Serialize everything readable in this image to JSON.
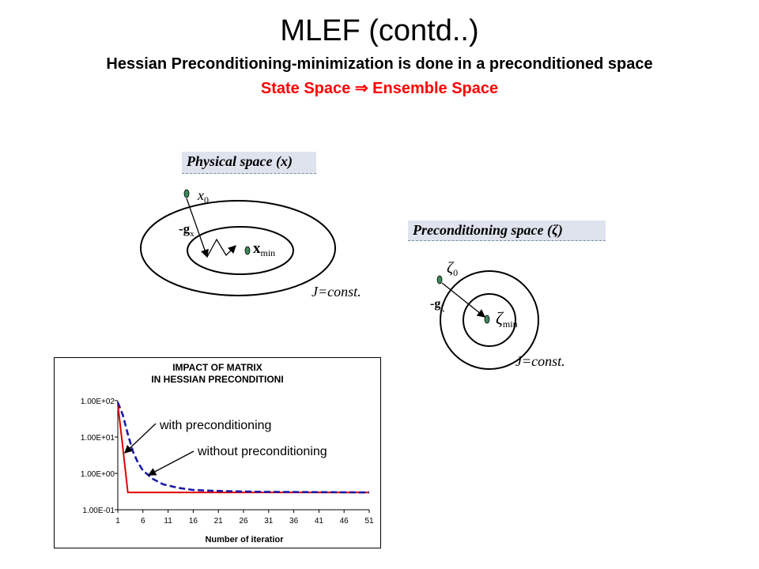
{
  "title": "MLEF (contd..)",
  "subtitle": "Hessian Preconditioning-minimization is done in a preconditioned space",
  "subtitle2": {
    "left": "State Space",
    "arrow": "⇒",
    "right": "Ensemble Space"
  },
  "physical": {
    "label": "Physical space (x)",
    "start_label": "x",
    "start_sub": "0",
    "grad_label": "-g",
    "grad_sub": "x",
    "min_label": "x",
    "min_sub": "min",
    "contour_label": "J=const."
  },
  "precond": {
    "label": "Preconditioning space (ζ)",
    "start_label": "ζ",
    "start_sub": "0",
    "grad_label": "-g",
    "grad_sub": "ζ",
    "min_label": "ζ",
    "min_sub": "min",
    "contour_label": "J=const."
  },
  "colors": {
    "red_text": "#ff0000",
    "label_bg": "#dfe3ee",
    "blue_series": "#1a1aa6",
    "red_series": "#e00000"
  },
  "annotations": {
    "with": "with preconditioning",
    "without": "without preconditioning"
  },
  "chart_data": {
    "type": "line",
    "title": "IMPACT OF MATRIX IN HESSIAN PRECONDITIONI",
    "title_line1": "IMPACT OF MATRIX",
    "title_line2": "IN HESSIAN PRECONDITIONI",
    "xlabel": "Number of iteratior",
    "ylabel": "",
    "y_scale": "log",
    "ylim": [
      0.1,
      100
    ],
    "xlim": [
      1,
      51
    ],
    "x_ticks": [
      "1",
      "6",
      "11",
      "16",
      "21",
      "26",
      "31",
      "36",
      "41",
      "46",
      "51"
    ],
    "y_ticks": [
      "1.00E+02",
      "1.00E+01",
      "1.00E+00",
      "1.00E-01"
    ],
    "y_tick_values": [
      100,
      10,
      1,
      0.1
    ],
    "grid": false,
    "series": [
      {
        "name": "with preconditioning",
        "color": "#e00000",
        "style": "solid",
        "x": [
          1,
          2,
          3,
          4,
          51
        ],
        "y": [
          80,
          5,
          0.3,
          0.3,
          0.3
        ]
      },
      {
        "name": "without preconditioning",
        "color": "#1a1aa6",
        "style": "dashed",
        "x": [
          1,
          2,
          3,
          4,
          5,
          6,
          8,
          10,
          13,
          16,
          20,
          25,
          30,
          51
        ],
        "y": [
          90,
          40,
          12,
          4,
          2,
          1.2,
          0.7,
          0.5,
          0.4,
          0.35,
          0.33,
          0.32,
          0.31,
          0.3
        ]
      }
    ]
  }
}
